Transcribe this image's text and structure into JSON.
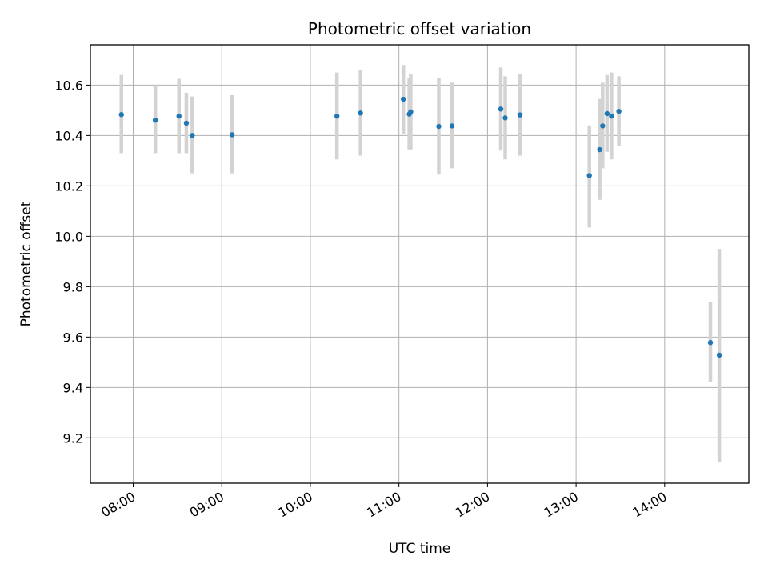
{
  "chart_data": {
    "type": "scatter",
    "title": "Photometric offset variation",
    "xlabel": "UTC time",
    "ylabel": "Photometric offset",
    "x_is_time": true,
    "xlim": [
      "07:31",
      "14:57"
    ],
    "ylim": [
      9.02,
      10.76
    ],
    "xticks": [
      "08:00",
      "09:00",
      "10:00",
      "11:00",
      "12:00",
      "13:00",
      "14:00"
    ],
    "yticks": [
      9.2,
      9.4,
      9.6,
      9.8,
      10.0,
      10.2,
      10.4,
      10.6
    ],
    "ytick_labels": [
      "9.2",
      "9.4",
      "9.6",
      "9.8",
      "10.0",
      "10.2",
      "10.4",
      "10.6"
    ],
    "grid": true,
    "colors": {
      "point": "#1f77b4",
      "errorbar": "#d3d3d3",
      "grid": "#b0b0b0"
    },
    "series": [
      {
        "points": [
          {
            "x": "07:52",
            "y": 10.483,
            "ylo": 10.33,
            "yhi": 10.64
          },
          {
            "x": "08:15",
            "y": 10.461,
            "ylo": 10.33,
            "yhi": 10.6
          },
          {
            "x": "08:31",
            "y": 10.477,
            "ylo": 10.33,
            "yhi": 10.625
          },
          {
            "x": "08:36",
            "y": 10.449,
            "ylo": 10.33,
            "yhi": 10.57
          },
          {
            "x": "08:40",
            "y": 10.4,
            "ylo": 10.25,
            "yhi": 10.555
          },
          {
            "x": "09:07",
            "y": 10.403,
            "ylo": 10.25,
            "yhi": 10.56
          },
          {
            "x": "10:18",
            "y": 10.477,
            "ylo": 10.305,
            "yhi": 10.65
          },
          {
            "x": "10:34",
            "y": 10.489,
            "ylo": 10.32,
            "yhi": 10.66
          },
          {
            "x": "11:03",
            "y": 10.544,
            "ylo": 10.405,
            "yhi": 10.68
          },
          {
            "x": "11:07",
            "y": 10.485,
            "ylo": 10.345,
            "yhi": 10.63
          },
          {
            "x": "11:08",
            "y": 10.494,
            "ylo": 10.345,
            "yhi": 10.645
          },
          {
            "x": "11:27",
            "y": 10.436,
            "ylo": 10.245,
            "yhi": 10.63
          },
          {
            "x": "11:36",
            "y": 10.438,
            "ylo": 10.27,
            "yhi": 10.61
          },
          {
            "x": "12:09",
            "y": 10.505,
            "ylo": 10.34,
            "yhi": 10.67
          },
          {
            "x": "12:12",
            "y": 10.47,
            "ylo": 10.305,
            "yhi": 10.635
          },
          {
            "x": "12:22",
            "y": 10.482,
            "ylo": 10.32,
            "yhi": 10.645
          },
          {
            "x": "13:09",
            "y": 10.241,
            "ylo": 10.035,
            "yhi": 10.44
          },
          {
            "x": "13:16",
            "y": 10.344,
            "ylo": 10.145,
            "yhi": 10.545
          },
          {
            "x": "13:18",
            "y": 10.438,
            "ylo": 10.27,
            "yhi": 10.61
          },
          {
            "x": "13:21",
            "y": 10.487,
            "ylo": 10.335,
            "yhi": 10.64
          },
          {
            "x": "13:24",
            "y": 10.477,
            "ylo": 10.305,
            "yhi": 10.65
          },
          {
            "x": "13:29",
            "y": 10.496,
            "ylo": 10.36,
            "yhi": 10.635
          },
          {
            "x": "14:31",
            "y": 9.578,
            "ylo": 9.42,
            "yhi": 9.74
          },
          {
            "x": "14:37",
            "y": 9.528,
            "ylo": 9.105,
            "yhi": 9.95
          }
        ]
      }
    ]
  }
}
